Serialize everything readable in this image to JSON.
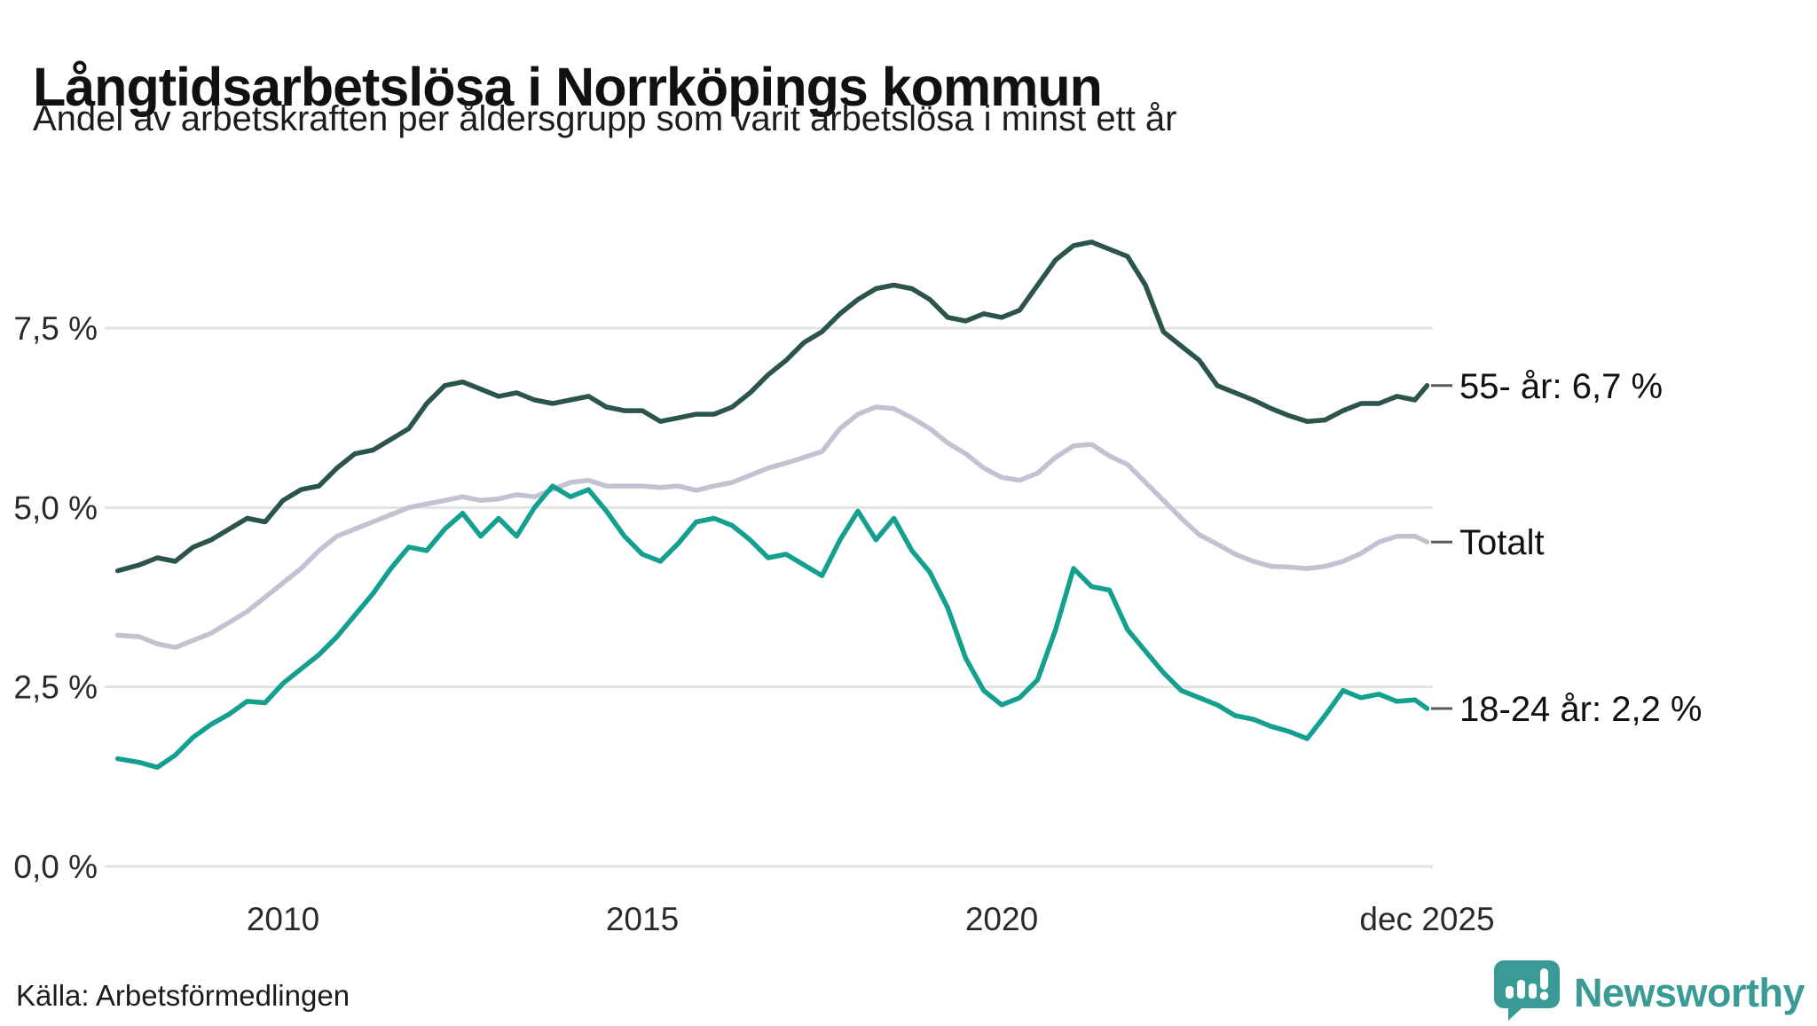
{
  "header": {
    "title": "Långtidsarbetslösa i Norrköpings kommun",
    "subtitle": "Andel av arbetskraften per åldersgrupp som varit arbetslösa i minst ett år"
  },
  "footer": {
    "source": "Källa: Arbetsförmedlingen"
  },
  "branding": {
    "name": "Newsworthy",
    "color": "#3a9b96"
  },
  "colors": {
    "grid": "#e3e3e3",
    "axis_text": "#2a2a2a",
    "series_55": "#2b544d",
    "series_total": "#c5c0d2",
    "series_18_24": "#13a08e"
  },
  "chart_data": {
    "type": "line",
    "title": "Långtidsarbetslösa i Norrköpings kommun",
    "subtitle": "Andel av arbetskraften per åldersgrupp som varit arbetslösa i minst ett år",
    "unit": "% av arbetskraften",
    "grid": "horizontal",
    "xlim": [
      2007.7,
      2025.92
    ],
    "ylim": [
      0,
      9.3
    ],
    "legend_position": "right-end-labels",
    "y_ticks": [
      {
        "value": 0,
        "label": "0,0 %"
      },
      {
        "value": 2.5,
        "label": "2,5 %"
      },
      {
        "value": 5,
        "label": "5,0 %"
      },
      {
        "value": 7.5,
        "label": "7,5 %"
      }
    ],
    "x_ticks": [
      {
        "value": 2010,
        "label": "2010"
      },
      {
        "value": 2015,
        "label": "2015"
      },
      {
        "value": 2020,
        "label": "2020"
      },
      {
        "value": 2025.92,
        "label": "dec 2025"
      }
    ],
    "x": [
      2007.7,
      2008,
      2008.25,
      2008.5,
      2008.75,
      2009,
      2009.25,
      2009.5,
      2009.75,
      2010,
      2010.25,
      2010.5,
      2010.75,
      2011,
      2011.25,
      2011.5,
      2011.75,
      2012,
      2012.25,
      2012.5,
      2012.75,
      2013,
      2013.25,
      2013.5,
      2013.75,
      2014,
      2014.25,
      2014.5,
      2014.75,
      2015,
      2015.25,
      2015.5,
      2015.75,
      2016,
      2016.25,
      2016.5,
      2016.75,
      2017,
      2017.25,
      2017.5,
      2017.75,
      2018,
      2018.25,
      2018.5,
      2018.75,
      2019,
      2019.25,
      2019.5,
      2019.75,
      2020,
      2020.25,
      2020.5,
      2020.75,
      2021,
      2021.25,
      2021.5,
      2021.75,
      2022,
      2022.25,
      2022.5,
      2022.75,
      2023,
      2023.25,
      2023.5,
      2023.75,
      2024,
      2024.25,
      2024.5,
      2024.75,
      2025,
      2025.25,
      2025.5,
      2025.75,
      2025.92
    ],
    "series": [
      {
        "name": "Totalt",
        "end_label": "Totalt",
        "end_value": 4.5,
        "color": "#c5c0d2",
        "values": [
          3.22,
          3.2,
          3.1,
          3.05,
          3.15,
          3.25,
          3.4,
          3.55,
          3.75,
          3.95,
          4.15,
          4.4,
          4.6,
          4.7,
          4.8,
          4.9,
          5.0,
          5.05,
          5.1,
          5.15,
          5.1,
          5.12,
          5.18,
          5.15,
          5.25,
          5.35,
          5.38,
          5.3,
          5.3,
          5.3,
          5.28,
          5.3,
          5.24,
          5.3,
          5.35,
          5.45,
          5.55,
          5.62,
          5.7,
          5.78,
          6.1,
          6.3,
          6.4,
          6.38,
          6.25,
          6.1,
          5.9,
          5.75,
          5.55,
          5.42,
          5.38,
          5.48,
          5.7,
          5.86,
          5.88,
          5.72,
          5.6,
          5.35,
          5.1,
          4.85,
          4.62,
          4.49,
          4.35,
          4.25,
          4.18,
          4.17,
          4.15,
          4.18,
          4.25,
          4.36,
          4.52,
          4.6,
          4.6,
          4.52
        ]
      },
      {
        "name": "55- år",
        "end_label": "55- år: 6,7 %",
        "end_value": 6.7,
        "color": "#2b544d",
        "values": [
          4.12,
          4.2,
          4.3,
          4.25,
          4.45,
          4.55,
          4.7,
          4.85,
          4.8,
          5.1,
          5.25,
          5.3,
          5.55,
          5.75,
          5.8,
          5.95,
          6.1,
          6.45,
          6.7,
          6.75,
          6.65,
          6.55,
          6.6,
          6.5,
          6.45,
          6.5,
          6.55,
          6.4,
          6.35,
          6.35,
          6.2,
          6.25,
          6.3,
          6.3,
          6.4,
          6.6,
          6.85,
          7.05,
          7.3,
          7.45,
          7.7,
          7.9,
          8.05,
          8.1,
          8.05,
          7.9,
          7.65,
          7.6,
          7.7,
          7.65,
          7.75,
          8.1,
          8.45,
          8.65,
          8.7,
          8.6,
          8.5,
          8.1,
          7.45,
          7.25,
          7.05,
          6.7,
          6.6,
          6.5,
          6.38,
          6.28,
          6.2,
          6.22,
          6.35,
          6.45,
          6.45,
          6.55,
          6.5,
          6.7
        ]
      },
      {
        "name": "18-24 år",
        "end_label": "18-24 år: 2,2 %",
        "end_value": 2.2,
        "color": "#13a08e",
        "values": [
          1.5,
          1.45,
          1.38,
          1.55,
          1.8,
          1.98,
          2.12,
          2.3,
          2.28,
          2.55,
          2.75,
          2.95,
          3.2,
          3.5,
          3.8,
          4.15,
          4.45,
          4.4,
          4.7,
          4.92,
          4.6,
          4.85,
          4.6,
          5.0,
          5.3,
          5.15,
          5.25,
          4.95,
          4.6,
          4.35,
          4.25,
          4.5,
          4.8,
          4.85,
          4.75,
          4.55,
          4.3,
          4.35,
          4.2,
          4.05,
          4.55,
          4.95,
          4.55,
          4.85,
          4.4,
          4.1,
          3.6,
          2.9,
          2.45,
          2.25,
          2.35,
          2.6,
          3.3,
          4.15,
          3.9,
          3.85,
          3.3,
          3.0,
          2.7,
          2.45,
          2.35,
          2.25,
          2.1,
          2.05,
          1.95,
          1.88,
          1.78,
          2.1,
          2.45,
          2.35,
          2.4,
          2.3,
          2.32,
          2.2
        ]
      }
    ]
  }
}
